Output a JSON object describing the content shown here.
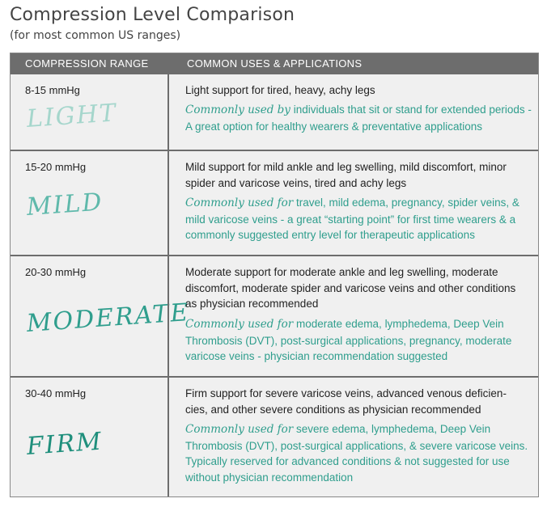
{
  "title": "Compression Level Comparison",
  "subtitle": "(for most common US ranges)",
  "headers": {
    "range": "COMPRESSION RANGE",
    "uses": "COMMON USES & APPLICATIONS"
  },
  "rows": [
    {
      "range": "8-15 mmHg",
      "level": "LIGHT",
      "description": "Light support for tired, heavy, achy legs",
      "uses_lead": "Commonly used by",
      "uses_text": " individuals that sit or stand for extended periods - A great option for healthy wearers & preventative applications"
    },
    {
      "range": "15-20 mmHg",
      "level": "MILD",
      "description": "Mild support for mild ankle and leg swelling, mild discomfort, minor spider and varicose veins, tired and achy legs",
      "uses_lead": "Commonly used for",
      "uses_text": " travel, mild edema, pregnancy, spider veins, & mild varicose veins - a great “starting point” for first time wearers & a commonly suggested entry level for therapeutic applications"
    },
    {
      "range": "20-30 mmHg",
      "level": "MODERATE",
      "description": "Moderate support for moderate ankle and leg swelling, moderate discomfort, moderate spider and varicose veins and other conditions as physician recommended",
      "uses_lead": "Commonly used for",
      "uses_text": " moderate edema, lymphedema, Deep Vein Thrombosis (DVT), post-surgical applications, pregnancy, moderate varicose veins - physician recommendation suggested"
    },
    {
      "range": "30-40 mmHg",
      "level": "FIRM",
      "description": "Firm support for severe varicose veins, advanced venous deficien-cies, and other severe conditions as physician recommended",
      "uses_lead": "Commonly used for",
      "uses_text": " severe edema, lymphedema, Deep Vein Thrombosis (DVT), post-surgical applications, & severe varicose veins. Typically reserved for advanced conditions & not suggested for use without physician recommendation"
    }
  ]
}
